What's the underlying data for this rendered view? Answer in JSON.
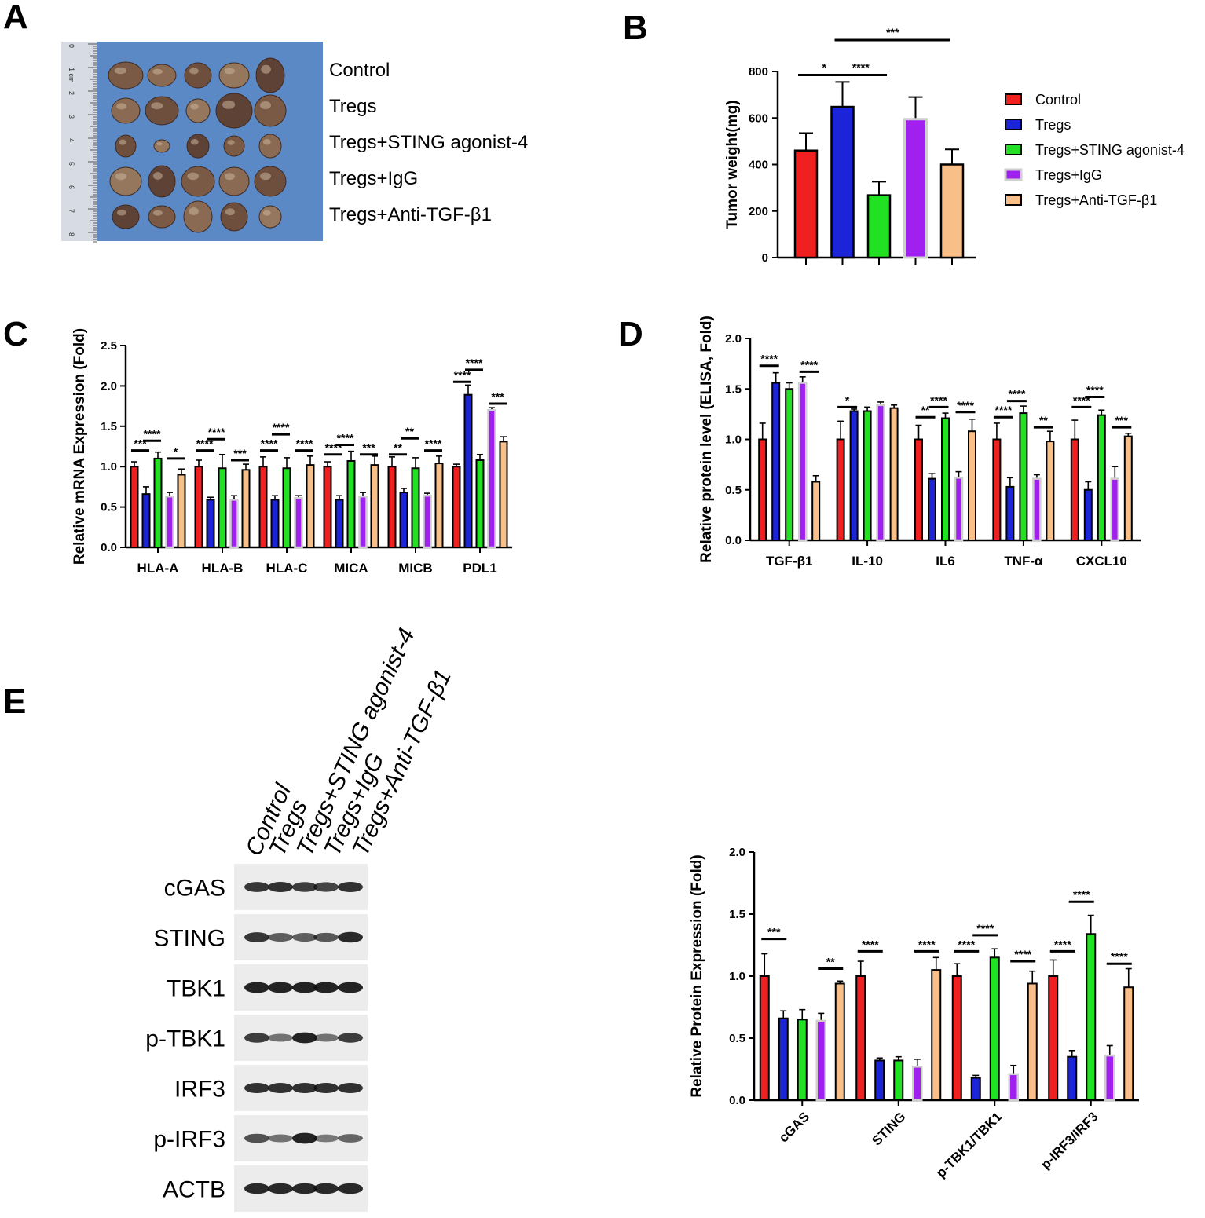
{
  "panels": {
    "A": "A",
    "B": "B",
    "C": "C",
    "D": "D",
    "E": "E"
  },
  "photo": {
    "group_labels": [
      "Control",
      "Tregs",
      "Tregs+STING agonist-4",
      "Tregs+IgG",
      "Tregs+Anti-TGF-β1"
    ],
    "ruler_labels": [
      "0",
      "1 cm",
      "2",
      "3",
      "4",
      "5",
      "6",
      "7",
      "8"
    ],
    "colors": {
      "background": "#5b89c6",
      "tumor": "#7d5d45"
    }
  },
  "legend": {
    "entries": [
      "Control",
      "Tregs",
      "Tregs+STING agonist-4",
      "Tregs+IgG",
      "Tregs+Anti-TGF-β1"
    ],
    "colors": [
      "#f02020",
      "#1c24d8",
      "#22e022",
      "#a020f0",
      "#f8c088"
    ]
  },
  "blot": {
    "lanes": [
      "Control",
      "Tregs",
      "Tregs+STING agonist-4",
      "Tregs+IgG",
      "Tregs+Anti-TGF-β1"
    ],
    "proteins": [
      "cGAS",
      "STING",
      "TBK1",
      "p-TBK1",
      "IRF3",
      "p-IRF3",
      "ACTB"
    ],
    "band_intensities": [
      [
        0.8,
        0.85,
        0.75,
        0.7,
        0.85
      ],
      [
        0.8,
        0.5,
        0.5,
        0.55,
        0.9
      ],
      [
        0.95,
        0.95,
        0.95,
        0.95,
        0.95
      ],
      [
        0.75,
        0.35,
        0.95,
        0.35,
        0.75
      ],
      [
        0.85,
        0.85,
        0.85,
        0.85,
        0.85
      ],
      [
        0.6,
        0.35,
        0.95,
        0.3,
        0.45
      ],
      [
        0.9,
        0.9,
        0.9,
        0.9,
        0.9
      ]
    ]
  },
  "chart_data": [
    {
      "id": "B",
      "type": "bar",
      "title": "",
      "xlabel": "",
      "ylabel": "Tumor weight(mg)",
      "ylim": [
        0,
        800
      ],
      "yticks": [
        0,
        200,
        400,
        600,
        800
      ],
      "categories": [
        "Control",
        "Tregs",
        "Tregs+STING agonist-4",
        "Tregs+IgG",
        "Tregs+Anti-TGF-β1"
      ],
      "values": [
        460,
        648,
        268,
        595,
        400
      ],
      "errors": [
        75,
        107,
        58,
        95,
        65
      ],
      "significance": [
        {
          "from": 0,
          "to": 1,
          "label": "*",
          "y": 785
        },
        {
          "from": 1,
          "to": 2,
          "label": "****",
          "y": 785
        },
        {
          "from": 1,
          "to": 4,
          "label": "***",
          "y": 935
        }
      ]
    },
    {
      "id": "C",
      "type": "bar",
      "ylabel": "Relative mRNA Expression (Fold)",
      "ylim": [
        0,
        2.5
      ],
      "yticks": [
        0.0,
        0.5,
        1.0,
        1.5,
        2.0,
        2.5
      ],
      "categories": [
        "HLA-A",
        "HLA-B",
        "HLA-C",
        "MICA",
        "MICB",
        "PDL1"
      ],
      "series": [
        {
          "name": "Control",
          "values": [
            1.0,
            1.0,
            1.0,
            1.0,
            1.0,
            1.0
          ],
          "errors": [
            0.06,
            0.08,
            0.12,
            0.06,
            0.12,
            0.03
          ]
        },
        {
          "name": "Tregs",
          "values": [
            0.66,
            0.59,
            0.59,
            0.59,
            0.68,
            1.89
          ],
          "errors": [
            0.09,
            0.03,
            0.05,
            0.05,
            0.05,
            0.12
          ]
        },
        {
          "name": "Tregs+STING agonist-4",
          "values": [
            1.1,
            0.98,
            0.98,
            1.07,
            0.98,
            1.08
          ],
          "errors": [
            0.08,
            0.17,
            0.13,
            0.12,
            0.13,
            0.07
          ]
        },
        {
          "name": "Tregs+IgG",
          "values": [
            0.63,
            0.59,
            0.61,
            0.63,
            0.64,
            1.7
          ],
          "errors": [
            0.05,
            0.05,
            0.03,
            0.05,
            0.03,
            0.03
          ]
        },
        {
          "name": "Tregs+Anti-TGF-β1",
          "values": [
            0.9,
            0.96,
            1.02,
            1.02,
            1.04,
            1.31
          ],
          "errors": [
            0.07,
            0.07,
            0.11,
            0.11,
            0.09,
            0.06
          ]
        }
      ],
      "significance": [
        {
          "cat": 0,
          "from": 0,
          "to": 1,
          "label": "***",
          "y": 1.2
        },
        {
          "cat": 0,
          "from": 1,
          "to": 2,
          "label": "****",
          "y": 1.32
        },
        {
          "cat": 0,
          "from": 3,
          "to": 4,
          "label": "*",
          "y": 1.1
        },
        {
          "cat": 1,
          "from": 0,
          "to": 1,
          "label": "****",
          "y": 1.2
        },
        {
          "cat": 1,
          "from": 1,
          "to": 2,
          "label": "****",
          "y": 1.34
        },
        {
          "cat": 1,
          "from": 3,
          "to": 4,
          "label": "***",
          "y": 1.08
        },
        {
          "cat": 2,
          "from": 0,
          "to": 1,
          "label": "****",
          "y": 1.2
        },
        {
          "cat": 2,
          "from": 1,
          "to": 2,
          "label": "****",
          "y": 1.4
        },
        {
          "cat": 2,
          "from": 3,
          "to": 4,
          "label": "****",
          "y": 1.2
        },
        {
          "cat": 3,
          "from": 0,
          "to": 1,
          "label": "****",
          "y": 1.15
        },
        {
          "cat": 3,
          "from": 1,
          "to": 2,
          "label": "****",
          "y": 1.27
        },
        {
          "cat": 3,
          "from": 3,
          "to": 4,
          "label": "***",
          "y": 1.15
        },
        {
          "cat": 4,
          "from": 0,
          "to": 1,
          "label": "**",
          "y": 1.15
        },
        {
          "cat": 4,
          "from": 1,
          "to": 2,
          "label": "**",
          "y": 1.35
        },
        {
          "cat": 4,
          "from": 3,
          "to": 4,
          "label": "****",
          "y": 1.2
        },
        {
          "cat": 5,
          "from": 0,
          "to": 1,
          "label": "****",
          "y": 2.05
        },
        {
          "cat": 5,
          "from": 1,
          "to": 2,
          "label": "****",
          "y": 2.2
        },
        {
          "cat": 5,
          "from": 3,
          "to": 4,
          "label": "***",
          "y": 1.78
        }
      ]
    },
    {
      "id": "D",
      "type": "bar",
      "ylabel": "Relative protein level (ELISA, Fold)",
      "ylim": [
        0,
        2.0
      ],
      "yticks": [
        0.0,
        0.5,
        1.0,
        1.5,
        2.0
      ],
      "categories": [
        "TGF-β1",
        "IL-10",
        "IL6",
        "TNF-α",
        "CXCL10"
      ],
      "series": [
        {
          "name": "Control",
          "values": [
            1.0,
            1.0,
            1.0,
            1.0,
            1.0
          ],
          "errors": [
            0.16,
            0.18,
            0.14,
            0.16,
            0.19
          ]
        },
        {
          "name": "Tregs",
          "values": [
            1.56,
            1.28,
            0.61,
            0.53,
            0.5
          ],
          "errors": [
            0.1,
            0.02,
            0.05,
            0.09,
            0.08
          ]
        },
        {
          "name": "Tregs+STING agonist-4",
          "values": [
            1.5,
            1.28,
            1.21,
            1.26,
            1.24
          ],
          "errors": [
            0.06,
            0.04,
            0.05,
            0.07,
            0.05
          ]
        },
        {
          "name": "Tregs+IgG",
          "values": [
            1.56,
            1.34,
            0.62,
            0.61,
            0.61
          ],
          "errors": [
            0.06,
            0.03,
            0.06,
            0.04,
            0.12
          ]
        },
        {
          "name": "Tregs+Anti-TGF-β1",
          "values": [
            0.58,
            1.31,
            1.08,
            0.98,
            1.03
          ],
          "errors": [
            0.06,
            0.03,
            0.12,
            0.1,
            0.03
          ]
        }
      ],
      "significance": [
        {
          "cat": 0,
          "from": 0,
          "to": 1,
          "label": "****",
          "y": 1.73
        },
        {
          "cat": 0,
          "from": 3,
          "to": 4,
          "label": "****",
          "y": 1.67
        },
        {
          "cat": 1,
          "from": 0,
          "to": 1,
          "label": "*",
          "y": 1.32
        },
        {
          "cat": 2,
          "from": 0,
          "to": 1,
          "label": "**",
          "y": 1.22
        },
        {
          "cat": 2,
          "from": 1,
          "to": 2,
          "label": "****",
          "y": 1.32
        },
        {
          "cat": 2,
          "from": 3,
          "to": 4,
          "label": "****",
          "y": 1.27
        },
        {
          "cat": 3,
          "from": 0,
          "to": 1,
          "label": "****",
          "y": 1.22
        },
        {
          "cat": 3,
          "from": 1,
          "to": 2,
          "label": "****",
          "y": 1.38
        },
        {
          "cat": 3,
          "from": 3,
          "to": 4,
          "label": "**",
          "y": 1.12
        },
        {
          "cat": 4,
          "from": 0,
          "to": 1,
          "label": "****",
          "y": 1.32
        },
        {
          "cat": 4,
          "from": 1,
          "to": 2,
          "label": "****",
          "y": 1.42
        },
        {
          "cat": 4,
          "from": 3,
          "to": 4,
          "label": "***",
          "y": 1.12
        }
      ]
    },
    {
      "id": "E",
      "type": "bar",
      "ylabel": "Relative Protein Expression (Fold)",
      "ylim": [
        0,
        2.0
      ],
      "yticks": [
        0.0,
        0.5,
        1.0,
        1.5,
        2.0
      ],
      "categories": [
        "cGAS",
        "STING",
        "p-TBK1/TBK1",
        "p-IRF3/IRF3"
      ],
      "series": [
        {
          "name": "Control",
          "values": [
            1.0,
            1.0,
            1.0,
            1.0
          ],
          "errors": [
            0.18,
            0.12,
            0.1,
            0.13
          ]
        },
        {
          "name": "Tregs",
          "values": [
            0.66,
            0.32,
            0.18,
            0.35
          ],
          "errors": [
            0.06,
            0.02,
            0.02,
            0.05
          ]
        },
        {
          "name": "Tregs+STING agonist-4",
          "values": [
            0.65,
            0.32,
            1.15,
            1.34
          ],
          "errors": [
            0.08,
            0.03,
            0.07,
            0.15
          ]
        },
        {
          "name": "Tregs+IgG",
          "values": [
            0.64,
            0.27,
            0.21,
            0.36
          ],
          "errors": [
            0.06,
            0.06,
            0.07,
            0.08
          ]
        },
        {
          "name": "Tregs+Anti-TGF-β1",
          "values": [
            0.94,
            1.05,
            0.94,
            0.91
          ],
          "errors": [
            0.02,
            0.1,
            0.1,
            0.15
          ]
        }
      ],
      "significance": [
        {
          "cat": 0,
          "from": 0,
          "to": 1,
          "label": "***",
          "y": 1.3
        },
        {
          "cat": 0,
          "from": 3,
          "to": 4,
          "label": "**",
          "y": 1.06
        },
        {
          "cat": 1,
          "from": 0,
          "to": 1,
          "label": "****",
          "y": 1.2
        },
        {
          "cat": 1,
          "from": 3,
          "to": 4,
          "label": "****",
          "y": 1.2
        },
        {
          "cat": 2,
          "from": 0,
          "to": 1,
          "label": "****",
          "y": 1.2
        },
        {
          "cat": 2,
          "from": 1,
          "to": 2,
          "label": "****",
          "y": 1.33
        },
        {
          "cat": 2,
          "from": 3,
          "to": 4,
          "label": "****",
          "y": 1.12
        },
        {
          "cat": 3,
          "from": 0,
          "to": 1,
          "label": "****",
          "y": 1.2
        },
        {
          "cat": 3,
          "from": 1,
          "to": 2,
          "label": "****",
          "y": 1.6
        },
        {
          "cat": 3,
          "from": 3,
          "to": 4,
          "label": "****",
          "y": 1.1
        }
      ]
    }
  ]
}
